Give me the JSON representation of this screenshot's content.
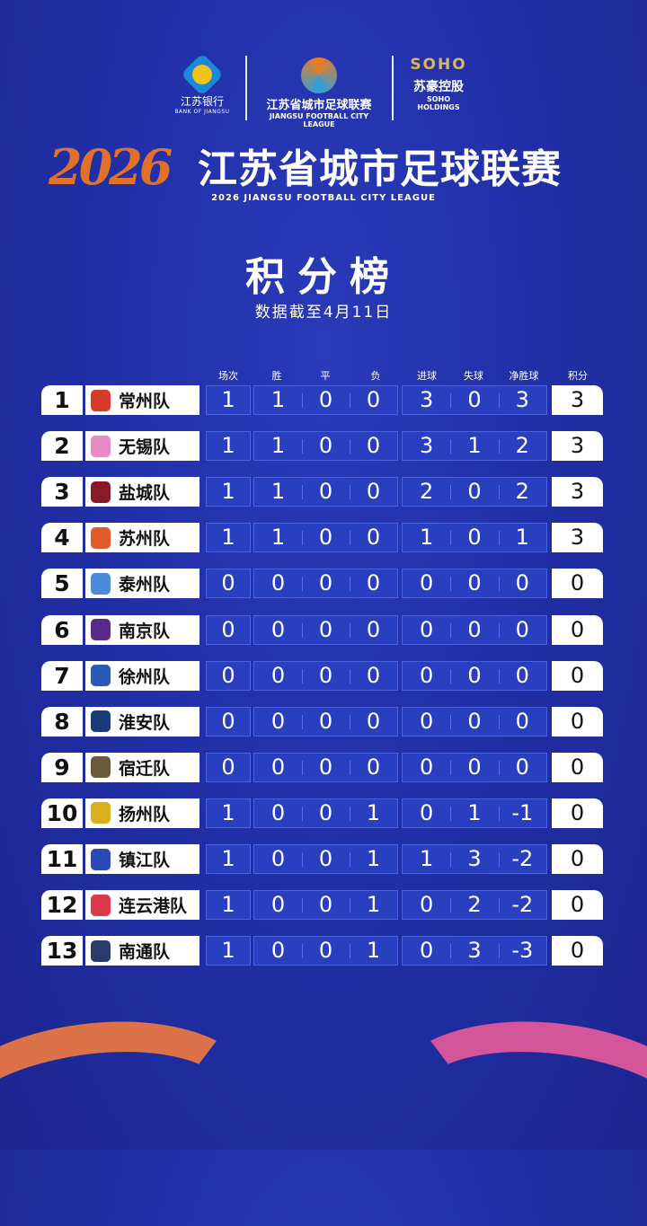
{
  "sponsors": {
    "bank": {
      "name_cn": "江苏银行",
      "name_en": "BANK OF JIANGSU"
    },
    "league": {
      "name_cn": "江苏省城市足球联赛",
      "name_en": "JIANGSU FOOTBALL CITY LEAGUE"
    },
    "soho": {
      "mark": "SOHO",
      "name_cn": "苏豪控股",
      "name_en": "SOHO HOLDINGS"
    }
  },
  "title": {
    "year": "2026",
    "cn": "江苏省城市足球联赛",
    "en": "2026  JIANGSU FOOTBALL CITY LEAGUE"
  },
  "board": {
    "title": "积分榜",
    "date": "数据截至4月11日"
  },
  "columns": [
    "场次",
    "胜",
    "平",
    "负",
    "进球",
    "失球",
    "净胜球",
    "积分"
  ],
  "rows": [
    {
      "rank": "1",
      "team": "常州队",
      "color": "#d83a2a",
      "p": "1",
      "w": "1",
      "d": "0",
      "l": "0",
      "gf": "3",
      "ga": "0",
      "gd": "3",
      "pts": "3"
    },
    {
      "rank": "2",
      "team": "无锡队",
      "color": "#e88ac8",
      "p": "1",
      "w": "1",
      "d": "0",
      "l": "0",
      "gf": "3",
      "ga": "1",
      "gd": "2",
      "pts": "3"
    },
    {
      "rank": "3",
      "team": "盐城队",
      "color": "#8a1a2a",
      "p": "1",
      "w": "1",
      "d": "0",
      "l": "0",
      "gf": "2",
      "ga": "0",
      "gd": "2",
      "pts": "3"
    },
    {
      "rank": "4",
      "team": "苏州队",
      "color": "#e05a2a",
      "p": "1",
      "w": "1",
      "d": "0",
      "l": "0",
      "gf": "1",
      "ga": "0",
      "gd": "1",
      "pts": "3"
    },
    {
      "rank": "5",
      "team": "泰州队",
      "color": "#4a8ad8",
      "p": "0",
      "w": "0",
      "d": "0",
      "l": "0",
      "gf": "0",
      "ga": "0",
      "gd": "0",
      "pts": "0"
    },
    {
      "rank": "6",
      "team": "南京队",
      "color": "#5a2a8a",
      "p": "0",
      "w": "0",
      "d": "0",
      "l": "0",
      "gf": "0",
      "ga": "0",
      "gd": "0",
      "pts": "0"
    },
    {
      "rank": "7",
      "team": "徐州队",
      "color": "#2a5ab8",
      "p": "0",
      "w": "0",
      "d": "0",
      "l": "0",
      "gf": "0",
      "ga": "0",
      "gd": "0",
      "pts": "0"
    },
    {
      "rank": "8",
      "team": "淮安队",
      "color": "#1a3a7a",
      "p": "0",
      "w": "0",
      "d": "0",
      "l": "0",
      "gf": "0",
      "ga": "0",
      "gd": "0",
      "pts": "0"
    },
    {
      "rank": "9",
      "team": "宿迁队",
      "color": "#6a5a3a",
      "p": "0",
      "w": "0",
      "d": "0",
      "l": "0",
      "gf": "0",
      "ga": "0",
      "gd": "0",
      "pts": "0"
    },
    {
      "rank": "10",
      "team": "扬州队",
      "color": "#d8b020",
      "p": "1",
      "w": "0",
      "d": "0",
      "l": "1",
      "gf": "0",
      "ga": "1",
      "gd": "-1",
      "pts": "0"
    },
    {
      "rank": "11",
      "team": "镇江队",
      "color": "#2a4ab8",
      "p": "1",
      "w": "0",
      "d": "0",
      "l": "1",
      "gf": "1",
      "ga": "3",
      "gd": "-2",
      "pts": "0"
    },
    {
      "rank": "12",
      "team": "连云港队",
      "color": "#d83a4a",
      "p": "1",
      "w": "0",
      "d": "0",
      "l": "1",
      "gf": "0",
      "ga": "2",
      "gd": "-2",
      "pts": "0"
    },
    {
      "rank": "13",
      "team": "南通队",
      "color": "#2a3a6a",
      "p": "1",
      "w": "0",
      "d": "0",
      "l": "1",
      "gf": "0",
      "ga": "3",
      "gd": "-3",
      "pts": "0"
    }
  ]
}
